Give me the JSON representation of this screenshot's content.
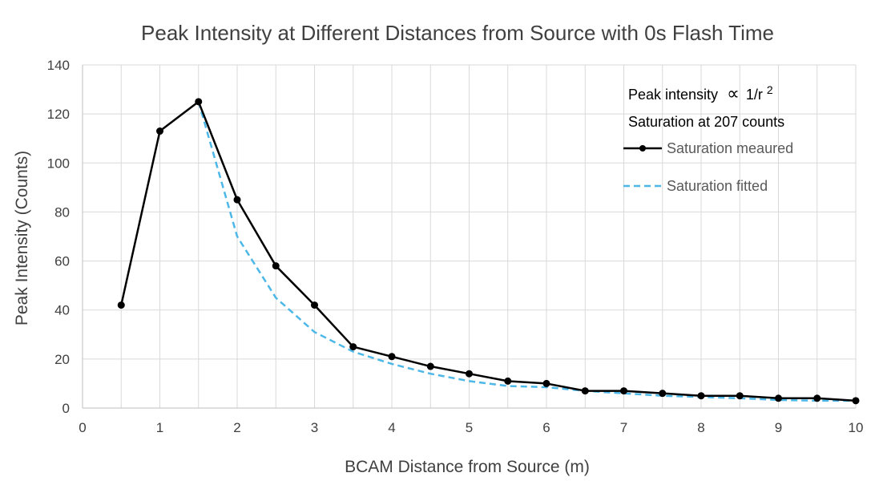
{
  "chart_data": {
    "type": "line",
    "title": "Peak Intensity at Different Distances from Source with 0s Flash Time",
    "xlabel": "BCAM Distance from Source (m)",
    "ylabel": "Peak Intensity (Counts)",
    "xlim": [
      0,
      10
    ],
    "ylim": [
      0,
      140
    ],
    "xticks": [
      0,
      1,
      2,
      3,
      4,
      5,
      6,
      7,
      8,
      9,
      10
    ],
    "yticks": [
      0,
      20,
      40,
      60,
      80,
      100,
      120,
      140
    ],
    "grid": true,
    "legend_position": "top-right",
    "annotations": {
      "line1_text": "Peak intensity",
      "line1_symbol": "∝",
      "line1_expr": "1/r",
      "line1_exp": "2",
      "line2": "Saturation at 207 counts"
    },
    "series": [
      {
        "name": "Saturation meaured",
        "color": "#000000",
        "style": "solid",
        "markers": true,
        "x": [
          0.5,
          1,
          1.5,
          2,
          2.5,
          3,
          3.5,
          4,
          4.5,
          5,
          5.5,
          6,
          6.5,
          7,
          7.5,
          8,
          8.5,
          9,
          9.5,
          10
        ],
        "y": [
          42,
          113,
          125,
          85,
          58,
          42,
          25,
          21,
          17,
          14,
          11,
          10,
          7,
          7,
          6,
          5,
          5,
          4,
          4,
          3
        ]
      },
      {
        "name": "Saturation fitted",
        "color": "#4db8e8",
        "style": "dashed",
        "markers": false,
        "x": [
          1.5,
          2,
          2.5,
          3,
          3.5,
          4,
          4.5,
          5,
          5.5,
          6,
          6.5,
          7,
          7.5,
          8,
          8.5,
          9,
          9.5,
          10
        ],
        "y": [
          125,
          70,
          45,
          31,
          23,
          18,
          14,
          11,
          9,
          8.5,
          7,
          6,
          5,
          4.5,
          4,
          3.3,
          3,
          3
        ]
      }
    ]
  }
}
